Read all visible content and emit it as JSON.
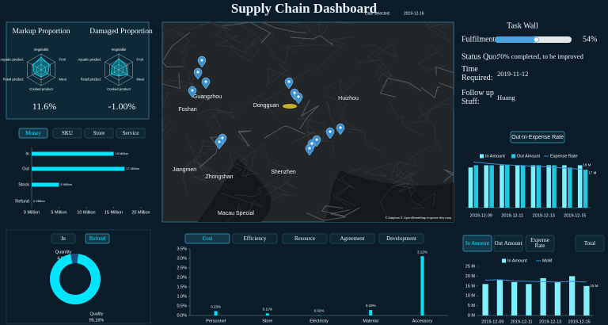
{
  "header": {
    "title": "Supply Chain Dashboard",
    "date_label": "Date selected:",
    "date": "2019-12-16"
  },
  "tab_groups": [
    {
      "labels": [
        "Money",
        "SKU",
        "Store",
        "Service"
      ],
      "active": 0
    },
    {
      "labels": [
        "In",
        "Refund"
      ],
      "active": 1
    },
    {
      "labels": [
        "Cost",
        "Efficiency",
        "Resource",
        "Agreement",
        "Development"
      ],
      "active": 0
    },
    {
      "labels": [
        "In Amount",
        "Out Amount",
        "Expense Rate",
        "Total"
      ],
      "active": 0
    }
  ],
  "map": {
    "places": [
      "Foshan",
      "Guangzhou",
      "Dongguan",
      "Huizhou",
      "Jiangmen",
      "Zhongshan",
      "Shenzhen",
      "Macau Special"
    ],
    "attribution": "© Mapbox © OpenStreetMap Improve this map"
  },
  "task_wall": {
    "title": "Task Wall",
    "fulfilment_label": "Fulfilment",
    "fulfilment": 54,
    "fulfilment_text": "54%",
    "status_label": "Status Quo:",
    "status": "70% completed, to be improved",
    "time_label": "Time Required:",
    "time": "2019-11-12",
    "follow_label": "Follow up Stuff:",
    "follow": "Huang"
  },
  "chart_data": [
    {
      "type": "radar",
      "title": "Markup Proportion",
      "kpi": "11.6%",
      "categories": [
        "Vegetable",
        "Fruit",
        "Meat",
        "Cooked product",
        "Retail product",
        "Aquatic product"
      ],
      "values": [
        0.8,
        0.6,
        0.5,
        0.45,
        0.5,
        0.6
      ],
      "rlim": [
        0,
        1
      ],
      "color": "#00e5ff"
    },
    {
      "type": "radar",
      "title": "Damaged Proportion",
      "kpi": "-1.00%",
      "categories": [
        "Vegetable",
        "Fruit",
        "Meat",
        "Cooked product",
        "Retail product",
        "Aquatic product"
      ],
      "values": [
        0.7,
        0.55,
        0.6,
        0.4,
        0.55,
        0.5
      ],
      "rlim": [
        0,
        1
      ],
      "color": "#00e5ff"
    },
    {
      "type": "hbar",
      "categories": [
        "In",
        "Out",
        "Stock",
        "Refund"
      ],
      "values": [
        15,
        17,
        5,
        0
      ],
      "value_labels": [
        "15 Million",
        "17 Million",
        "5 Million",
        "0 Million"
      ],
      "color": "#00e5ff",
      "xlim": [
        0,
        20
      ],
      "xticks": [
        {
          "value": 0,
          "label": "0 Million"
        },
        {
          "value": 5,
          "label": "5 Million"
        },
        {
          "value": 10,
          "label": "10 Million"
        },
        {
          "value": 15,
          "label": "15 Million"
        },
        {
          "value": 20,
          "label": "20 Million"
        }
      ]
    },
    {
      "type": "combo",
      "title": "Out-In-Expense Rate",
      "categories": [
        "2019-12-09",
        null,
        "2019-12-11",
        null,
        "2019-12-13",
        null,
        "2019-12-15",
        null
      ],
      "ylim": [
        0,
        22
      ],
      "series": [
        {
          "name": "In Amount",
          "type": "bar",
          "color": "#7ff0ff",
          "values": [
            18,
            19,
            19,
            19,
            19,
            19,
            19,
            19
          ],
          "value_labels": [
            null,
            null,
            null,
            null,
            null,
            null,
            null,
            "19 M"
          ]
        },
        {
          "name": "Out Amount",
          "type": "bar",
          "color": "#1fc8e0",
          "values": [
            19,
            19,
            19,
            19,
            19,
            19,
            18,
            17
          ],
          "value_labels": [
            null,
            null,
            null,
            null,
            null,
            null,
            null,
            "17 M"
          ]
        },
        {
          "name": "Expense Rate",
          "type": "line",
          "color": "#3a8fd0",
          "values": [
            20.5,
            19.8,
            19.2,
            18.9,
            18.5,
            18.2,
            17.6,
            17.2
          ]
        }
      ]
    },
    {
      "type": "pie",
      "categories": [
        "Quantity",
        "Quality"
      ],
      "values": [
        4.84,
        95.16
      ],
      "value_labels": [
        "4.84%",
        "95.16%"
      ],
      "colors": [
        "#1b4f80",
        "#00e5ff"
      ]
    },
    {
      "type": "bar",
      "categories": [
        "Personnel",
        "Store",
        "Electricity",
        "Material",
        "Accessory"
      ],
      "values": [
        0.23,
        0.11,
        0.02,
        0.29,
        3.12
      ],
      "value_labels": [
        "0.23%",
        "0.11%",
        "0.02%",
        "0.29%",
        "3.12%"
      ],
      "color": "#00e5ff",
      "ylim": [
        0,
        3.5
      ],
      "yticks": [
        {
          "value": 0,
          "label": "0.0%"
        },
        {
          "value": 0.5,
          "label": "0.5%"
        },
        {
          "value": 1,
          "label": "1.0%"
        },
        {
          "value": 1.5,
          "label": "1.5%"
        },
        {
          "value": 2,
          "label": "2.0%"
        },
        {
          "value": 2.5,
          "label": "2.5%"
        },
        {
          "value": 3,
          "label": "3.0%"
        },
        {
          "value": 3.5,
          "label": "3.5%"
        }
      ]
    },
    {
      "type": "combo",
      "categories": [
        "2019-12-09",
        null,
        "2019-12-11",
        null,
        "2019-12-13",
        null,
        "2019-12-15",
        null
      ],
      "ylim": [
        0,
        25
      ],
      "yticks": [
        {
          "value": 0,
          "label": "0 M"
        },
        {
          "value": 5,
          "label": "5 M"
        },
        {
          "value": 10,
          "label": "10 M"
        },
        {
          "value": 15,
          "label": "15 M"
        },
        {
          "value": 20,
          "label": "20 M"
        },
        {
          "value": 25,
          "label": "25 M"
        }
      ],
      "series": [
        {
          "name": "In Amount",
          "type": "bar",
          "color": "#7ff0ff",
          "values": [
            16,
            18,
            17,
            16,
            19,
            17,
            20,
            15
          ],
          "value_labels": [
            null,
            null,
            null,
            null,
            null,
            null,
            null,
            "15 M"
          ]
        },
        {
          "name": "MoM",
          "type": "line",
          "color": "#3a8fd0",
          "values": [
            18,
            18.2,
            17.6,
            17.4,
            17.2,
            17,
            17.4,
            17
          ]
        }
      ]
    }
  ]
}
